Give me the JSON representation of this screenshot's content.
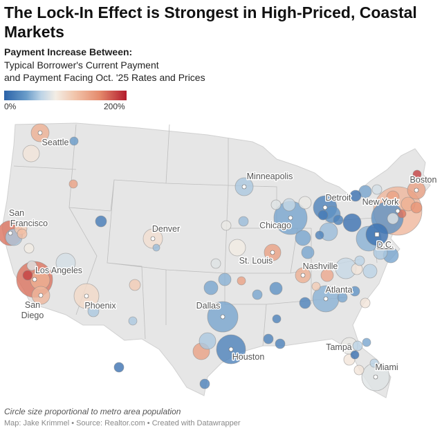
{
  "title": "The Lock-In Effect is Strongest in High-Priced, Coastal Markets",
  "legend": {
    "heading": "Payment Increase Between:",
    "description_line1": "Typical Borrower's Current Payment",
    "description_line2": "and Payment Facing Oct. '25 Rates and Prices",
    "min_label": "0%",
    "max_label": "200%",
    "min_value": 0,
    "max_value": 200,
    "color_low": "#2a62a8",
    "color_mid": "#f3ede5",
    "color_high": "#b31b2c"
  },
  "footer": {
    "note": "Circle size proportional to metro area population",
    "credit": "Map: Jake Krimmel • Source: Realtor.com • Created with Datawrapper"
  },
  "bubbles": [
    {
      "label": "Seattle",
      "value": 130
    },
    {
      "value": 90
    },
    {
      "value": 35
    },
    {
      "value": 140
    },
    {
      "label": "San Francisco",
      "value": 165
    },
    {
      "value": 55
    },
    {
      "value": 110
    },
    {
      "value": 120
    },
    {
      "value": 85
    },
    {
      "label": "Los Angeles",
      "value": 165
    },
    {
      "value": 185
    },
    {
      "value": 130
    },
    {
      "label": "San Diego",
      "value": 125
    },
    {
      "value": 75
    },
    {
      "value": 70
    },
    {
      "value": 15
    },
    {
      "label": "Denver",
      "value": 95
    },
    {
      "value": 50
    },
    {
      "label": "Phoenix",
      "value": 100
    },
    {
      "value": 55
    },
    {
      "value": 110
    },
    {
      "value": 55
    },
    {
      "label": "Minneapolis",
      "value": 55
    },
    {
      "value": 80
    },
    {
      "value": 50
    },
    {
      "value": 85
    },
    {
      "value": 75
    },
    {
      "label": "St. Louis",
      "value": 140
    },
    {
      "label": "Chicago",
      "value": 40
    },
    {
      "value": 75
    },
    {
      "value": 65
    },
    {
      "value": 80
    },
    {
      "label": "Detroit",
      "value": 20
    },
    {
      "value": 15
    },
    {
      "value": 30
    },
    {
      "value": 20
    },
    {
      "value": 10
    },
    {
      "value": 10
    },
    {
      "value": 40
    },
    {
      "value": 70
    },
    {
      "label": "Boston",
      "value": 140
    },
    {
      "label": "New York",
      "value": 125
    },
    {
      "value": 30
    },
    {
      "label": "D.C.",
      "value": 10
    },
    {
      "value": 45
    },
    {
      "value": 75
    },
    {
      "value": 140
    },
    {
      "value": 130
    },
    {
      "value": 150
    },
    {
      "value": 185
    },
    {
      "value": 165
    },
    {
      "value": 40
    },
    {
      "value": 55
    },
    {
      "value": 40
    },
    {
      "value": 20
    },
    {
      "value": 50
    },
    {
      "value": 40
    },
    {
      "label": "Nashville",
      "value": 130
    },
    {
      "value": 135
    },
    {
      "value": 110
    },
    {
      "value": 65
    },
    {
      "value": 90
    },
    {
      "value": 60
    },
    {
      "value": 60
    },
    {
      "label": "Atlanta",
      "value": 45
    },
    {
      "value": 20
    },
    {
      "value": 40
    },
    {
      "value": 30
    },
    {
      "value": 90
    },
    {
      "value": 45
    },
    {
      "value": 140
    },
    {
      "value": 40
    },
    {
      "value": 40
    },
    {
      "value": 30
    },
    {
      "value": 20
    },
    {
      "label": "Dallas",
      "value": 40
    },
    {
      "label": "Houston",
      "value": 20
    },
    {
      "value": 140
    },
    {
      "value": 55
    },
    {
      "value": 20
    },
    {
      "value": 20
    },
    {
      "value": 20
    },
    {
      "value": 10
    },
    {
      "label": "Tampa",
      "value": 80
    },
    {
      "value": 60
    },
    {
      "value": 90
    },
    {
      "value": 10
    },
    {
      "value": 40
    },
    {
      "value": 90
    },
    {
      "label": "Miami",
      "value": 75
    },
    {
      "value": 60
    }
  ]
}
